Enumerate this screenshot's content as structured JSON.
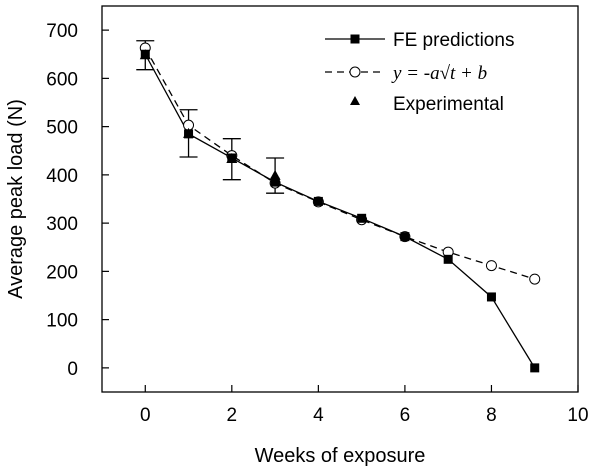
{
  "chart_data": {
    "type": "line",
    "xlabel": "Weeks of exposure",
    "ylabel": "Average peak load (N)",
    "xlim": [
      -1,
      10
    ],
    "ylim": [
      -50,
      750
    ],
    "xticks": [
      0,
      2,
      4,
      6,
      8,
      10
    ],
    "yticks": [
      0,
      100,
      200,
      300,
      400,
      500,
      600,
      700
    ],
    "legend_position": "top-right",
    "grid": false,
    "series": [
      {
        "name": "FE predictions",
        "marker": "filled-square",
        "line": "solid",
        "x": [
          0,
          1,
          2,
          3,
          4,
          5,
          6,
          7,
          8,
          9
        ],
        "y": [
          650,
          485,
          435,
          385,
          345,
          310,
          272,
          225,
          147,
          0
        ]
      },
      {
        "name": "y = -a√t + b",
        "marker": "open-circle",
        "line": "dashed",
        "x": [
          0,
          1,
          2,
          3,
          4,
          5,
          6,
          7,
          8,
          9
        ],
        "y": [
          663,
          503,
          440,
          383,
          344,
          307,
          272,
          240,
          212,
          184
        ]
      },
      {
        "name": "Experimental",
        "marker": "filled-triangle",
        "line": "none",
        "x": [
          0,
          1,
          2,
          3
        ],
        "y": [
          648,
          485,
          433,
          398
        ],
        "error_low": [
          618,
          437,
          390,
          362
        ],
        "error_high": [
          678,
          535,
          475,
          435
        ]
      }
    ]
  }
}
